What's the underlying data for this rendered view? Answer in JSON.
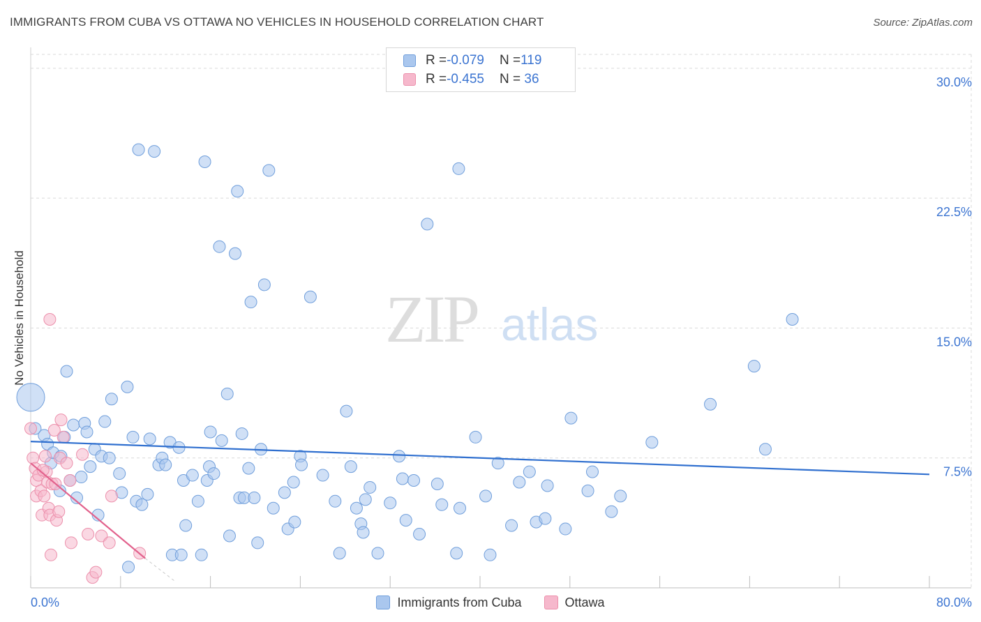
{
  "header": {
    "title": "IMMIGRANTS FROM CUBA VS OTTAWA NO VEHICLES IN HOUSEHOLD CORRELATION CHART",
    "source": "Source: ZipAtlas.com"
  },
  "watermark": {
    "zip": "ZIP",
    "atlas": "atlas"
  },
  "colors": {
    "blue_fill": "#aac7ee",
    "blue_stroke": "#6f9edb",
    "blue_line": "#2f6fcf",
    "pink_fill": "#f6b8cc",
    "pink_stroke": "#ec8fab",
    "pink_line": "#e2618c",
    "axis_text": "#3b74d1",
    "grid": "#d9d9d9"
  },
  "legend": {
    "rows": [
      {
        "r_label": "R = ",
        "r_value": "-0.079",
        "n_label": "N = ",
        "n_value": "119"
      },
      {
        "r_label": "R = ",
        "r_value": "-0.455",
        "n_label": "N = ",
        "n_value": " 36"
      }
    ]
  },
  "chart_data": {
    "type": "scatter",
    "title": "IMMIGRANTS FROM CUBA VS OTTAWA NO VEHICLES IN HOUSEHOLD CORRELATION CHART",
    "xlabel": "",
    "ylabel": "No Vehicles in Household",
    "xlim": [
      0,
      80
    ],
    "ylim": [
      0,
      30.8
    ],
    "x_tick_labels": [
      "0.0%",
      "80.0%"
    ],
    "y_ticks": [
      7.5,
      15.0,
      22.5,
      30.0
    ],
    "y_tick_labels": [
      "7.5%",
      "15.0%",
      "22.5%",
      "30.0%"
    ],
    "grid": true,
    "series": [
      {
        "name": "Immigrants from Cuba",
        "color": "blue",
        "trend": {
          "x": [
            0,
            80
          ],
          "y": [
            8.45,
            6.55
          ]
        },
        "points": [
          [
            0.0,
            11.0
          ],
          [
            0.4,
            9.2
          ],
          [
            1.2,
            8.8
          ],
          [
            1.5,
            8.3
          ],
          [
            1.8,
            7.2
          ],
          [
            2.0,
            7.8
          ],
          [
            2.6,
            5.6
          ],
          [
            2.7,
            7.6
          ],
          [
            3.0,
            8.7
          ],
          [
            3.2,
            12.5
          ],
          [
            3.5,
            6.2
          ],
          [
            3.8,
            9.4
          ],
          [
            4.1,
            5.2
          ],
          [
            4.5,
            6.4
          ],
          [
            4.8,
            9.5
          ],
          [
            5.0,
            9.0
          ],
          [
            5.3,
            7.0
          ],
          [
            5.7,
            8.0
          ],
          [
            6.0,
            4.2
          ],
          [
            6.3,
            7.6
          ],
          [
            6.6,
            9.6
          ],
          [
            7.0,
            7.5
          ],
          [
            7.2,
            10.9
          ],
          [
            7.9,
            6.6
          ],
          [
            8.1,
            5.5
          ],
          [
            8.6,
            11.6
          ],
          [
            9.1,
            8.7
          ],
          [
            9.4,
            5.0
          ],
          [
            9.6,
            25.3
          ],
          [
            9.9,
            4.8
          ],
          [
            10.4,
            5.4
          ],
          [
            10.6,
            8.6
          ],
          [
            11.0,
            25.2
          ],
          [
            11.4,
            7.1
          ],
          [
            11.7,
            7.5
          ],
          [
            12.0,
            7.1
          ],
          [
            12.4,
            8.4
          ],
          [
            12.6,
            1.9
          ],
          [
            13.2,
            8.1
          ],
          [
            13.4,
            1.9
          ],
          [
            13.6,
            6.2
          ],
          [
            13.8,
            3.6
          ],
          [
            14.4,
            6.5
          ],
          [
            14.9,
            5.0
          ],
          [
            15.2,
            1.9
          ],
          [
            15.5,
            24.6
          ],
          [
            15.7,
            6.2
          ],
          [
            15.9,
            7.0
          ],
          [
            16.0,
            9.0
          ],
          [
            16.3,
            6.6
          ],
          [
            16.8,
            19.7
          ],
          [
            17.0,
            8.5
          ],
          [
            17.5,
            11.2
          ],
          [
            17.7,
            3.0
          ],
          [
            18.2,
            19.3
          ],
          [
            18.4,
            22.9
          ],
          [
            18.6,
            5.2
          ],
          [
            18.8,
            8.9
          ],
          [
            19.0,
            5.2
          ],
          [
            19.4,
            6.9
          ],
          [
            19.6,
            16.5
          ],
          [
            19.9,
            5.2
          ],
          [
            20.2,
            2.6
          ],
          [
            20.5,
            8.0
          ],
          [
            20.8,
            17.5
          ],
          [
            21.2,
            24.1
          ],
          [
            21.6,
            4.6
          ],
          [
            22.6,
            5.5
          ],
          [
            22.9,
            3.4
          ],
          [
            23.5,
            3.8
          ],
          [
            23.4,
            6.1
          ],
          [
            24.0,
            7.6
          ],
          [
            24.1,
            7.1
          ],
          [
            24.9,
            16.8
          ],
          [
            26.0,
            6.5
          ],
          [
            27.1,
            5.0
          ],
          [
            27.5,
            2.0
          ],
          [
            28.1,
            10.2
          ],
          [
            28.5,
            7.0
          ],
          [
            29.0,
            4.6
          ],
          [
            29.4,
            3.7
          ],
          [
            29.6,
            3.2
          ],
          [
            29.8,
            5.1
          ],
          [
            30.2,
            5.8
          ],
          [
            30.9,
            2.0
          ],
          [
            32.0,
            4.9
          ],
          [
            32.8,
            7.6
          ],
          [
            33.1,
            6.3
          ],
          [
            33.4,
            3.9
          ],
          [
            34.1,
            6.2
          ],
          [
            34.6,
            3.1
          ],
          [
            35.3,
            21.0
          ],
          [
            36.2,
            6.0
          ],
          [
            36.6,
            4.8
          ],
          [
            37.9,
            2.0
          ],
          [
            38.1,
            24.2
          ],
          [
            38.2,
            4.6
          ],
          [
            39.6,
            8.7
          ],
          [
            40.5,
            5.3
          ],
          [
            40.9,
            1.9
          ],
          [
            41.6,
            7.2
          ],
          [
            42.8,
            3.6
          ],
          [
            43.5,
            6.1
          ],
          [
            44.4,
            6.7
          ],
          [
            45.0,
            3.8
          ],
          [
            45.8,
            4.0
          ],
          [
            46.0,
            5.9
          ],
          [
            47.6,
            3.4
          ],
          [
            48.1,
            9.8
          ],
          [
            49.6,
            5.6
          ],
          [
            50.0,
            6.7
          ],
          [
            51.7,
            4.4
          ],
          [
            52.5,
            5.3
          ],
          [
            55.3,
            8.4
          ],
          [
            60.5,
            10.6
          ],
          [
            64.4,
            12.8
          ],
          [
            65.4,
            8.0
          ],
          [
            67.8,
            15.5
          ],
          [
            8.7,
            1.2
          ]
        ]
      },
      {
        "name": "Ottawa",
        "color": "pink",
        "trend": {
          "x": [
            0,
            10.2
          ],
          "y": [
            7.2,
            1.7
          ]
        },
        "trend_dashed": {
          "x": [
            10.2,
            12.8
          ],
          "y": [
            1.7,
            0.4
          ]
        },
        "points": [
          [
            0.0,
            9.2
          ],
          [
            0.2,
            7.5
          ],
          [
            0.4,
            6.9
          ],
          [
            0.5,
            6.2
          ],
          [
            0.5,
            5.3
          ],
          [
            0.7,
            6.5
          ],
          [
            0.9,
            5.6
          ],
          [
            1.0,
            4.2
          ],
          [
            1.2,
            5.3
          ],
          [
            1.3,
            7.6
          ],
          [
            1.4,
            6.7
          ],
          [
            1.5,
            6.1
          ],
          [
            1.6,
            4.6
          ],
          [
            1.7,
            4.2
          ],
          [
            1.7,
            15.5
          ],
          [
            1.8,
            1.9
          ],
          [
            1.9,
            6.0
          ],
          [
            2.1,
            9.1
          ],
          [
            2.2,
            6.0
          ],
          [
            2.3,
            3.9
          ],
          [
            2.5,
            4.4
          ],
          [
            2.6,
            7.5
          ],
          [
            2.7,
            9.7
          ],
          [
            2.9,
            8.7
          ],
          [
            3.2,
            7.2
          ],
          [
            3.5,
            6.2
          ],
          [
            3.6,
            2.6
          ],
          [
            4.6,
            7.7
          ],
          [
            5.1,
            3.1
          ],
          [
            5.5,
            0.6
          ],
          [
            5.8,
            0.9
          ],
          [
            6.3,
            3.0
          ],
          [
            7.0,
            2.6
          ],
          [
            7.2,
            5.3
          ],
          [
            9.7,
            2.0
          ],
          [
            1.1,
            6.8
          ]
        ]
      }
    ]
  },
  "legend_bottom": {
    "items": [
      {
        "label": "Immigrants from Cuba"
      },
      {
        "label": "Ottawa"
      }
    ]
  }
}
